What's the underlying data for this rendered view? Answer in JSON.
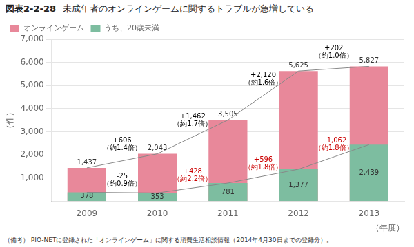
{
  "chart_data": {
    "type": "bar",
    "title": "図表2-2-28",
    "subtitle": "未成年者のオンラインゲームに関するトラブルが急増している",
    "caption": "（備考） PIO-NETに登録された「オンラインゲーム」に関する消費生活相談情報（2014年4月30日までの登録分）。",
    "xlabel": "（年度）",
    "ylabel": "（件）",
    "categories": [
      "2009",
      "2010",
      "2011",
      "2012",
      "2013"
    ],
    "series": [
      {
        "name": "オンラインゲーム",
        "color": "#E8889A",
        "values": [
          1437,
          2043,
          3505,
          5625,
          5827
        ],
        "value_labels": [
          "1,437",
          "2,043",
          "3,505",
          "5,625",
          "5,827"
        ]
      },
      {
        "name": "うち、20歳未満",
        "color": "#7DBDA0",
        "values": [
          378,
          353,
          781,
          1377,
          2439
        ],
        "value_labels": [
          "378",
          "353",
          "781",
          "1,377",
          "2,439"
        ]
      }
    ],
    "ylim": [
      0,
      7000
    ],
    "yticks": [
      {
        "value": 1000,
        "label": "1,000"
      },
      {
        "value": 2000,
        "label": "2,000"
      },
      {
        "value": 3000,
        "label": "3,000"
      },
      {
        "value": 4000,
        "label": "4,000"
      },
      {
        "value": 5000,
        "label": "5,000"
      },
      {
        "value": 6000,
        "label": "6,000"
      },
      {
        "value": 7000,
        "label": "7,000"
      }
    ],
    "grid": true,
    "legend": "upper left",
    "data_labels": true,
    "annotations": [
      {
        "text": "+606\n（約1.4倍）",
        "color": "black",
        "series": "オンラインゲーム",
        "from": "2009",
        "to": "2010"
      },
      {
        "text": "+1,462\n（約1.7倍）",
        "color": "black",
        "series": "オンラインゲーム",
        "from": "2010",
        "to": "2011"
      },
      {
        "text": "+2,120\n（約1.6倍）",
        "color": "black",
        "series": "オンラインゲーム",
        "from": "2011",
        "to": "2012"
      },
      {
        "text": "+202\n（約1.0倍）",
        "color": "black",
        "series": "オンラインゲーム",
        "from": "2012",
        "to": "2013"
      },
      {
        "text": "-25\n（約0.9倍）",
        "color": "black",
        "series": "うち、20歳未満",
        "from": "2009",
        "to": "2010"
      },
      {
        "text": "+428\n（約2.2倍）",
        "color": "#CC0000",
        "series": "うち、20歳未満",
        "from": "2010",
        "to": "2011"
      },
      {
        "text": "+596\n（約1.8倍）",
        "color": "#CC0000",
        "series": "うち、20歳未満",
        "from": "2011",
        "to": "2012"
      },
      {
        "text": "+1,062\n（約1.8倍）",
        "color": "#CC0000",
        "series": "うち、20歳未満",
        "from": "2012",
        "to": "2013"
      }
    ]
  }
}
